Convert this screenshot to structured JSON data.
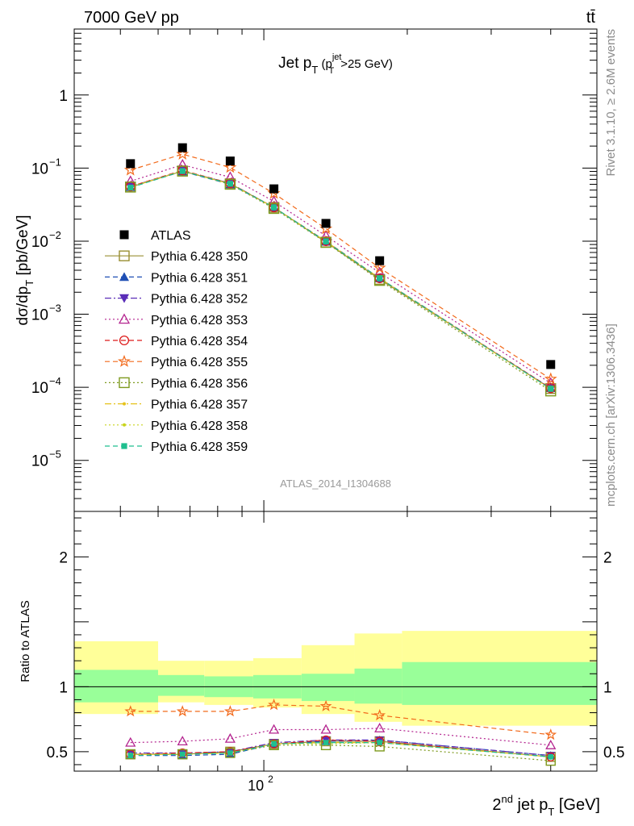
{
  "header": {
    "energy_label": "7000 GeV pp",
    "process_label": "tt̄"
  },
  "side_labels": {
    "rivet": "Rivet 3.1.10, ≥ 2.6M events",
    "mcplots": "mcplots.cern.ch [arXiv:1306.3436]"
  },
  "chart_data": [
    {
      "type": "scatter",
      "title": "Jet p_T (p_T^jet>25 GeV)",
      "title_parts": {
        "main": "Jet p",
        "sub": "T",
        "cond_open": " (p",
        "cond_sup": "jet",
        "cond_sub": "T",
        "cond_close": ">25 GeV)"
      },
      "watermark": "ATLAS_2014_I1304688",
      "ylabel": "dσ/dp_T [pb/GeV]",
      "ylabel_parts": {
        "main": "dσ/dp",
        "sub": "T",
        "unit": " [pb/GeV]"
      },
      "xscale": "log",
      "yscale": "log",
      "xlim": [
        40,
        500
      ],
      "ylim": [
        2e-06,
        8
      ],
      "y_ticks": [
        {
          "v": 1,
          "b": "1",
          "e": ""
        },
        {
          "v": 0.1,
          "b": "10",
          "e": "−1"
        },
        {
          "v": 0.01,
          "b": "10",
          "e": "−2"
        },
        {
          "v": 0.001,
          "b": "10",
          "e": "−3"
        },
        {
          "v": 0.0001,
          "b": "10",
          "e": "−4"
        },
        {
          "v": 1e-05,
          "b": "10",
          "e": "−5"
        }
      ],
      "x": [
        52.5,
        67.5,
        85,
        105,
        135,
        175,
        400
      ],
      "data_series": {
        "name": "ATLAS",
        "values": [
          0.115,
          0.19,
          0.125,
          0.052,
          0.0175,
          0.0054,
          0.000205
        ]
      },
      "legend_position": "left-middle",
      "series": [
        {
          "name": "Pythia 6.428 350",
          "color": "#998f33",
          "marker": "square-open",
          "dash": "solid",
          "values": [
            0.055,
            0.091,
            0.061,
            0.029,
            0.0097,
            0.003,
            9.6e-05
          ]
        },
        {
          "name": "Pythia 6.428 351",
          "color": "#1f4fb4",
          "marker": "triangle-up-filled",
          "dash": "dashed",
          "values": [
            0.055,
            0.09,
            0.06,
            0.029,
            0.0098,
            0.0031,
            9.7e-05
          ]
        },
        {
          "name": "Pythia 6.428 352",
          "color": "#5a2db8",
          "marker": "triangle-down-filled",
          "dash": "dashdot",
          "values": [
            0.056,
            0.092,
            0.062,
            0.029,
            0.0099,
            0.0031,
            9.6e-05
          ]
        },
        {
          "name": "Pythia 6.428 353",
          "color": "#b4248f",
          "marker": "triangle-up-open",
          "dash": "dotted",
          "values": [
            0.066,
            0.111,
            0.075,
            0.035,
            0.0118,
            0.0037,
            0.000114
          ]
        },
        {
          "name": "Pythia 6.428 354",
          "color": "#dd1a1a",
          "marker": "circle-open",
          "dash": "dashed",
          "values": [
            0.056,
            0.093,
            0.062,
            0.029,
            0.01,
            0.0031,
            9.7e-05
          ]
        },
        {
          "name": "Pythia 6.428 355",
          "color": "#f26a1b",
          "marker": "star-open",
          "dash": "dashed",
          "values": [
            0.094,
            0.155,
            0.102,
            0.045,
            0.0148,
            0.0043,
            0.00013
          ]
        },
        {
          "name": "Pythia 6.428 356",
          "color": "#7e9a1e",
          "marker": "square-open",
          "dash": "dotted",
          "values": [
            0.055,
            0.091,
            0.06,
            0.028,
            0.0096,
            0.0029,
            8.9e-05
          ]
        },
        {
          "name": "Pythia 6.428 357",
          "color": "#e6c21a",
          "marker": "dot",
          "dash": "dashdot",
          "values": [
            0.055,
            0.092,
            0.061,
            0.029,
            0.0099,
            0.0031,
            9.5e-05
          ]
        },
        {
          "name": "Pythia 6.428 358",
          "color": "#c8d41c",
          "marker": "dot",
          "dash": "dotted",
          "values": [
            0.055,
            0.091,
            0.061,
            0.029,
            0.0098,
            0.0031,
            9.4e-05
          ]
        },
        {
          "name": "Pythia 6.428 359",
          "color": "#1fbf8f",
          "marker": "square-small",
          "dash": "dashed",
          "values": [
            0.054,
            0.091,
            0.061,
            0.029,
            0.0099,
            0.0031,
            9.5e-05
          ]
        }
      ]
    },
    {
      "type": "scatter",
      "ylabel": "Ratio to ATLAS",
      "xlabel": "2^nd jet p_T [GeV]",
      "xlabel_parts": {
        "a": "2",
        "sup": "nd",
        "b": " jet p",
        "sub": "T",
        "unit": " [GeV]"
      },
      "xscale": "log",
      "yscale": "linear",
      "xlim": [
        40,
        500
      ],
      "ylim": [
        0.35,
        2.35
      ],
      "x_ticks": [
        {
          "v": 100,
          "b": "10",
          "e": "2"
        }
      ],
      "y_ticks": [
        {
          "v": 0.5,
          "label": "0.5"
        },
        {
          "v": 1,
          "label": "1"
        },
        {
          "v": 2,
          "label": "2"
        }
      ],
      "band_edges": [
        40,
        60,
        75,
        95,
        120,
        155,
        195,
        500
      ],
      "band_inner": [
        [
          0.88,
          1.13
        ],
        [
          0.93,
          1.09
        ],
        [
          0.92,
          1.08
        ],
        [
          0.91,
          1.09
        ],
        [
          0.89,
          1.1
        ],
        [
          0.87,
          1.14
        ],
        [
          0.86,
          1.19
        ]
      ],
      "band_outer": [
        [
          0.79,
          1.35
        ],
        [
          0.88,
          1.2
        ],
        [
          0.86,
          1.2
        ],
        [
          0.84,
          1.22
        ],
        [
          0.79,
          1.32
        ],
        [
          0.73,
          1.41
        ],
        [
          0.7,
          1.43
        ]
      ],
      "series": [
        {
          "name": "Pythia 6.428 350",
          "values": [
            0.48,
            0.48,
            0.5,
            0.56,
            0.58,
            0.58,
            0.46
          ]
        },
        {
          "name": "Pythia 6.428 351",
          "values": [
            0.47,
            0.47,
            0.48,
            0.56,
            0.58,
            0.59,
            0.47
          ]
        },
        {
          "name": "Pythia 6.428 352",
          "values": [
            0.49,
            0.49,
            0.5,
            0.57,
            0.59,
            0.59,
            0.47
          ]
        },
        {
          "name": "Pythia 6.428 353",
          "values": [
            0.57,
            0.58,
            0.6,
            0.67,
            0.67,
            0.68,
            0.55
          ]
        },
        {
          "name": "Pythia 6.428 354",
          "values": [
            0.48,
            0.49,
            0.5,
            0.56,
            0.59,
            0.58,
            0.46
          ]
        },
        {
          "name": "Pythia 6.428 355",
          "values": [
            0.81,
            0.81,
            0.81,
            0.86,
            0.85,
            0.78,
            0.63
          ]
        },
        {
          "name": "Pythia 6.428 356",
          "values": [
            0.48,
            0.48,
            0.49,
            0.55,
            0.55,
            0.54,
            0.43
          ]
        },
        {
          "name": "Pythia 6.428 357",
          "values": [
            0.48,
            0.48,
            0.49,
            0.56,
            0.57,
            0.57,
            0.46
          ]
        },
        {
          "name": "Pythia 6.428 358",
          "values": [
            0.48,
            0.48,
            0.49,
            0.56,
            0.56,
            0.57,
            0.46
          ]
        },
        {
          "name": "Pythia 6.428 359",
          "values": [
            0.47,
            0.48,
            0.49,
            0.56,
            0.57,
            0.57,
            0.46
          ]
        }
      ]
    }
  ]
}
